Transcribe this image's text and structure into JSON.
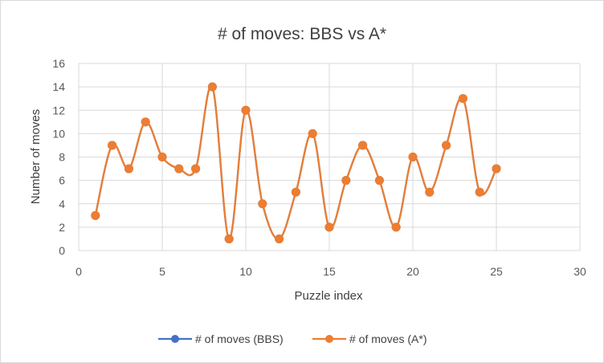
{
  "chart_data": {
    "type": "scatter",
    "title": "# of moves: BBS vs A*",
    "xlabel": "Puzzle index",
    "ylabel": "Number of moves",
    "xlim": [
      0,
      30
    ],
    "ylim": [
      0,
      16
    ],
    "x_ticks": [
      0,
      5,
      10,
      15,
      20,
      25,
      30
    ],
    "y_ticks": [
      0,
      2,
      4,
      6,
      8,
      10,
      12,
      14,
      16
    ],
    "grid": true,
    "smoothed_lines": true,
    "legend_position": "bottom",
    "x": [
      1,
      2,
      3,
      4,
      5,
      6,
      7,
      8,
      9,
      10,
      11,
      12,
      13,
      14,
      15,
      16,
      17,
      18,
      19,
      20,
      21,
      22,
      23,
      24,
      25
    ],
    "series": [
      {
        "name": "# of moves (BBS)",
        "color": "#4472c4",
        "values": [
          3,
          9,
          7,
          11,
          8,
          7,
          7,
          14,
          1,
          12,
          4,
          1,
          5,
          10,
          2,
          6,
          9,
          6,
          2,
          8,
          5,
          9,
          13,
          5,
          7
        ]
      },
      {
        "name": "# of moves (A*)",
        "color": "#ed7d31",
        "values": [
          3,
          9,
          7,
          11,
          8,
          7,
          7,
          14,
          1,
          12,
          4,
          1,
          5,
          10,
          2,
          6,
          9,
          6,
          2,
          8,
          5,
          9,
          13,
          5,
          7
        ]
      }
    ]
  }
}
